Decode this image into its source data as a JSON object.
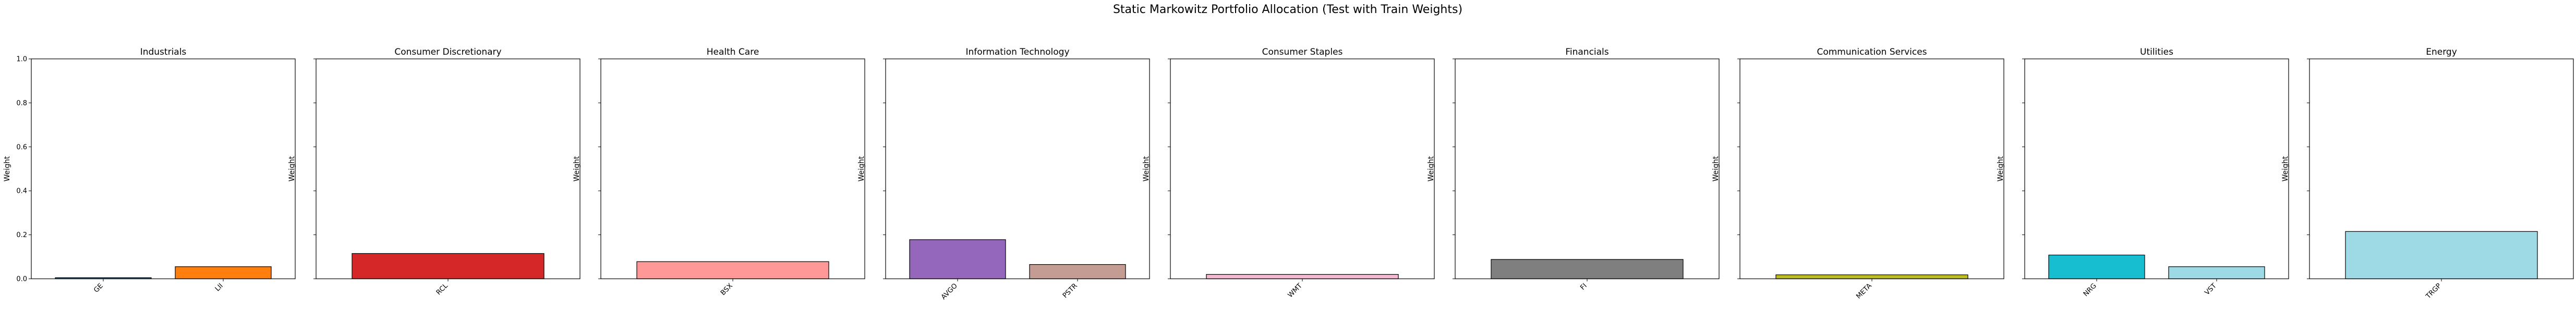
{
  "chart_data": {
    "type": "bar",
    "title": "Static Markowitz Portfolio Allocation (Test with Train Weights)",
    "ylabel": "Weight",
    "ylim": [
      0,
      1
    ],
    "yticks": [
      "0.0",
      "0.2",
      "0.4",
      "0.6",
      "0.8",
      "1.0"
    ],
    "grid": false,
    "panels": [
      {
        "title": "Industrials",
        "categories": [
          "GE",
          "LII"
        ],
        "values": [
          0.005,
          0.055
        ],
        "colors": [
          "#1f77b4",
          "#ff7f0e"
        ]
      },
      {
        "title": "Consumer Discretionary",
        "categories": [
          "RCL"
        ],
        "values": [
          0.115
        ],
        "colors": [
          "#d62728"
        ]
      },
      {
        "title": "Health Care",
        "categories": [
          "BSX"
        ],
        "values": [
          0.078
        ],
        "colors": [
          "#ff9896"
        ]
      },
      {
        "title": "Information Technology",
        "categories": [
          "AVGO",
          "PSTR"
        ],
        "values": [
          0.178,
          0.065
        ],
        "colors": [
          "#9467bd",
          "#c49c94"
        ]
      },
      {
        "title": "Consumer Staples",
        "categories": [
          "WMT"
        ],
        "values": [
          0.02
        ],
        "colors": [
          "#f7b6d2"
        ]
      },
      {
        "title": "Financials",
        "categories": [
          "FI"
        ],
        "values": [
          0.088
        ],
        "colors": [
          "#7f7f7f"
        ]
      },
      {
        "title": "Communication Services",
        "categories": [
          "META"
        ],
        "values": [
          0.018
        ],
        "colors": [
          "#bcbd22"
        ]
      },
      {
        "title": "Utilities",
        "categories": [
          "NRG",
          "VST"
        ],
        "values": [
          0.108,
          0.055
        ],
        "colors": [
          "#17becf",
          "#9edae5"
        ]
      },
      {
        "title": "Energy",
        "categories": [
          "TRGP"
        ],
        "values": [
          0.215
        ],
        "colors": [
          "#9edae5"
        ]
      }
    ]
  }
}
